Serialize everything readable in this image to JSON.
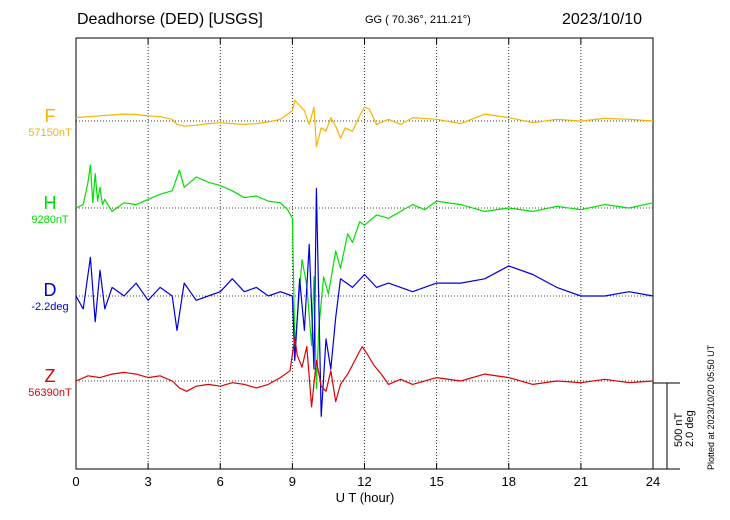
{
  "header": {
    "station": "Deadhorse (DED)  [USGS]",
    "coords": "GG ( 70.36°, 211.21°)",
    "date": "2023/10/10"
  },
  "plotted_note": "Plotted at 2023/10/20 05:50 UT",
  "scale_bar": {
    "nt": "500 nT",
    "deg": "2.0 deg"
  },
  "colors": {
    "F": "#f5b400",
    "H": "#00e000",
    "D": "#0000dd",
    "Z": "#dd0000"
  },
  "chart_data": {
    "type": "line",
    "title": "",
    "xlabel": "U T (hour)",
    "xlim": [
      0,
      24
    ],
    "xticks": [
      "0",
      "3",
      "6",
      "9",
      "12",
      "15",
      "18",
      "21",
      "24"
    ],
    "scale": "500 nT / 2.0 deg per bar",
    "series": [
      {
        "name": "F",
        "baseline_label": "57150nT",
        "unit": "nT",
        "x": [
          0,
          0.5,
          1,
          1.5,
          2,
          2.5,
          3,
          3.5,
          4,
          4.2,
          4.5,
          5,
          5.5,
          6,
          6.5,
          7,
          7.5,
          8,
          8.5,
          8.8,
          9,
          9.1,
          9.3,
          9.5,
          9.7,
          9.9,
          10,
          10.2,
          10.4,
          10.6,
          10.8,
          11,
          11.2,
          11.5,
          11.8,
          12,
          12.2,
          12.5,
          13,
          13.5,
          14,
          15,
          16,
          17,
          18,
          19,
          20,
          21,
          22,
          23,
          24
        ],
        "values": [
          20,
          25,
          30,
          35,
          40,
          38,
          30,
          25,
          10,
          -20,
          -30,
          -25,
          -15,
          -10,
          -15,
          -20,
          -15,
          -5,
          10,
          40,
          60,
          120,
          90,
          60,
          -20,
          80,
          -150,
          -40,
          -60,
          20,
          -30,
          -100,
          -40,
          -60,
          30,
          80,
          70,
          -20,
          10,
          -20,
          20,
          10,
          -15,
          40,
          20,
          -10,
          10,
          0,
          15,
          10,
          0
        ]
      },
      {
        "name": "H",
        "baseline_label": "9280nT",
        "unit": "nT",
        "x": [
          0,
          0.3,
          0.5,
          0.6,
          0.7,
          0.8,
          0.9,
          1,
          1.1,
          1.2,
          1.5,
          2,
          2.5,
          3,
          3.5,
          4,
          4.3,
          4.5,
          5,
          5.5,
          6,
          6.5,
          7,
          7.5,
          8,
          8.5,
          8.8,
          9,
          9.1,
          9.2,
          9.4,
          9.6,
          9.8,
          9.9,
          10,
          10.1,
          10.3,
          10.5,
          10.8,
          11,
          11.3,
          11.5,
          11.8,
          12,
          12.5,
          13,
          13.5,
          14,
          14.5,
          15,
          16,
          17,
          18,
          19,
          20,
          21,
          22,
          23,
          24
        ],
        "values": [
          0,
          20,
          150,
          250,
          30,
          200,
          40,
          120,
          20,
          50,
          -20,
          30,
          20,
          50,
          80,
          100,
          220,
          120,
          180,
          150,
          130,
          100,
          60,
          70,
          40,
          30,
          -10,
          -60,
          -800,
          -650,
          -300,
          -450,
          -800,
          -400,
          -1050,
          -700,
          -400,
          -500,
          -250,
          -350,
          -150,
          -200,
          -80,
          -100,
          -40,
          -60,
          -20,
          20,
          -10,
          40,
          20,
          -20,
          0,
          -20,
          10,
          -10,
          20,
          0,
          30
        ]
      },
      {
        "name": "D",
        "baseline_label": "-2.2deg",
        "unit": "deg",
        "x": [
          0,
          0.3,
          0.6,
          0.8,
          1,
          1.2,
          1.5,
          2,
          2.5,
          3,
          3.5,
          4,
          4.2,
          4.5,
          5,
          5.5,
          6,
          6.5,
          7,
          7.5,
          8,
          8.5,
          9,
          9.1,
          9.3,
          9.5,
          9.7,
          9.9,
          10,
          10.2,
          10.4,
          10.6,
          10.8,
          11,
          11.5,
          12,
          12.5,
          13,
          14,
          15,
          16,
          17,
          18,
          19,
          20,
          21,
          22,
          23,
          24
        ],
        "values": [
          0,
          -0.3,
          0.9,
          -0.6,
          0.6,
          -0.3,
          0.2,
          0,
          0.3,
          -0.1,
          0.2,
          0,
          -0.8,
          0.3,
          -0.1,
          0,
          0.1,
          0.4,
          0.1,
          0.2,
          0,
          0.1,
          0,
          -1.5,
          0.4,
          -0.8,
          1.2,
          -1.7,
          2.5,
          -2.8,
          -1.0,
          -1.7,
          -0.5,
          0.4,
          0.2,
          0.5,
          0.2,
          0.3,
          0.1,
          0.3,
          0.3,
          0.4,
          0.7,
          0.5,
          0.2,
          0,
          0,
          0.1,
          0
        ]
      },
      {
        "name": "Z",
        "baseline_label": "56390nT",
        "unit": "nT",
        "x": [
          0,
          0.5,
          1,
          1.5,
          2,
          2.5,
          3,
          3.5,
          4,
          4.3,
          4.6,
          5,
          5.5,
          6,
          6.5,
          7,
          7.5,
          8,
          8.5,
          8.9,
          9.1,
          9.2,
          9.4,
          9.6,
          9.8,
          10,
          10.2,
          10.4,
          10.6,
          10.8,
          11,
          11.3,
          11.6,
          11.9,
          12.1,
          12.4,
          12.7,
          13,
          13.5,
          14,
          15,
          16,
          17,
          18,
          19,
          20,
          21,
          22,
          23,
          24
        ],
        "values": [
          0,
          30,
          20,
          40,
          50,
          40,
          20,
          30,
          0,
          -40,
          -60,
          -30,
          -20,
          -30,
          -10,
          -20,
          -40,
          -20,
          20,
          60,
          250,
          150,
          80,
          200,
          -150,
          120,
          -30,
          -60,
          60,
          -120,
          -20,
          40,
          120,
          200,
          160,
          90,
          40,
          -20,
          10,
          -20,
          20,
          0,
          40,
          20,
          -20,
          0,
          -10,
          10,
          -10,
          0
        ]
      }
    ]
  }
}
